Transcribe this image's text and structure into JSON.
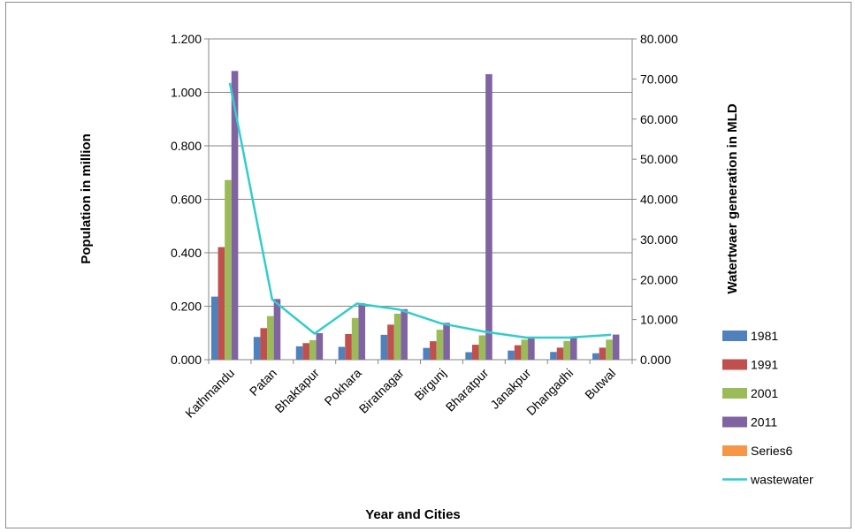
{
  "chart_data": {
    "type": "bar",
    "categories": [
      "Kathmandu",
      "Patan",
      "Bhaktapur",
      "Pokhara",
      "Biratnagar",
      "Birgunj",
      "Bharatpur",
      "Janakpur",
      "Dhangadhi",
      "Butwal"
    ],
    "series": [
      {
        "name": "1981",
        "color": "#4f81bd",
        "values": [
          0.236,
          0.085,
          0.05,
          0.048,
          0.093,
          0.044,
          0.028,
          0.034,
          0.029,
          0.024
        ]
      },
      {
        "name": "1991",
        "color": "#c0504d",
        "values": [
          0.421,
          0.118,
          0.062,
          0.096,
          0.131,
          0.069,
          0.056,
          0.054,
          0.045,
          0.045
        ]
      },
      {
        "name": "2001",
        "color": "#9bbb59",
        "values": [
          0.672,
          0.163,
          0.073,
          0.156,
          0.172,
          0.112,
          0.091,
          0.075,
          0.07,
          0.075
        ]
      },
      {
        "name": "2011",
        "color": "#8064a2",
        "values": [
          1.08,
          0.227,
          0.099,
          0.211,
          0.189,
          0.138,
          1.068,
          0.083,
          0.084,
          0.094
        ]
      },
      {
        "name": "Series6",
        "color": "#f79646",
        "values": [
          0,
          0,
          0,
          0,
          0,
          0,
          0,
          0,
          0,
          0
        ]
      }
    ],
    "line_series": {
      "name": "wastewater",
      "color": "#33cccc",
      "axis": "right",
      "values": [
        69.0,
        15.0,
        6.5,
        14.0,
        12.5,
        9.0,
        7.0,
        5.5,
        5.5,
        6.2
      ]
    },
    "title": "",
    "xlabel": "Year and Cities",
    "ylabel": "Population in million",
    "y2label": "Watertwaer generation in MLD",
    "ylim": [
      0,
      1.2
    ],
    "y2lim": [
      0,
      80
    ],
    "yticks": [
      "0.000",
      "0.200",
      "0.400",
      "0.600",
      "0.800",
      "1.000",
      "1.200"
    ],
    "y2ticks": [
      "0.000",
      "10.000",
      "20.000",
      "30.000",
      "40.000",
      "50.000",
      "60.000",
      "70.000",
      "80.000"
    ],
    "grid": true,
    "legend": "right"
  }
}
